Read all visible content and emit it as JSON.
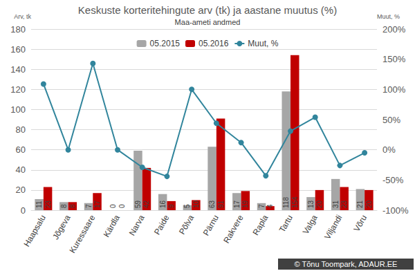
{
  "chart_data": {
    "type": "bar",
    "title": "Keskuste korteritehingute arv (tk) ja aastane muutus (%)",
    "subtitle": "Maa-ameti andmed",
    "y_label": "Arv, tk",
    "y2_label": "Muut, %",
    "credit": "© Tõnu Toompark, ADAUR.EE",
    "categories": [
      "Haapsalu",
      "Jõgeva",
      "Kuressaare",
      "Kärdla",
      "Narva",
      "Paide",
      "Põlva",
      "Pärnu",
      "Rakvere",
      "Rapla",
      "Tartu",
      "Valga",
      "Viljandi",
      "Võru"
    ],
    "series": [
      {
        "name": "05.2015",
        "type": "bar",
        "color": "#a6a6a6",
        "data_labels": true,
        "values": [
          11,
          8,
          7,
          0,
          59,
          16,
          5,
          63,
          17,
          7,
          118,
          13,
          31,
          21
        ]
      },
      {
        "name": "05.2016",
        "type": "bar",
        "color": "#c00000",
        "data_labels": true,
        "values": [
          23,
          8,
          17,
          0,
          42,
          9,
          10,
          91,
          19,
          4,
          154,
          20,
          23,
          20
        ]
      },
      {
        "name": "Muut, %",
        "type": "line",
        "axis": "y2",
        "color": "#31859c",
        "marker": "circle",
        "line_style": "solid",
        "values": [
          109,
          0,
          143,
          0,
          -29,
          -44,
          100,
          44,
          12,
          -43,
          31,
          54,
          -26,
          -5
        ]
      }
    ],
    "ylim": [
      0,
      180
    ],
    "yticks": [
      0,
      20,
      40,
      60,
      80,
      100,
      120,
      140,
      160,
      180
    ],
    "y2lim": [
      -100,
      200
    ],
    "y2ticks": [
      {
        "value": -100,
        "label": "-100%"
      },
      {
        "value": -50,
        "label": "-50%"
      },
      {
        "value": 0,
        "label": "0%"
      },
      {
        "value": 50,
        "label": "50%"
      },
      {
        "value": 100,
        "label": "100%"
      },
      {
        "value": 150,
        "label": "150%"
      },
      {
        "value": 200,
        "label": "200%"
      }
    ],
    "grid": true,
    "legend": "top"
  }
}
